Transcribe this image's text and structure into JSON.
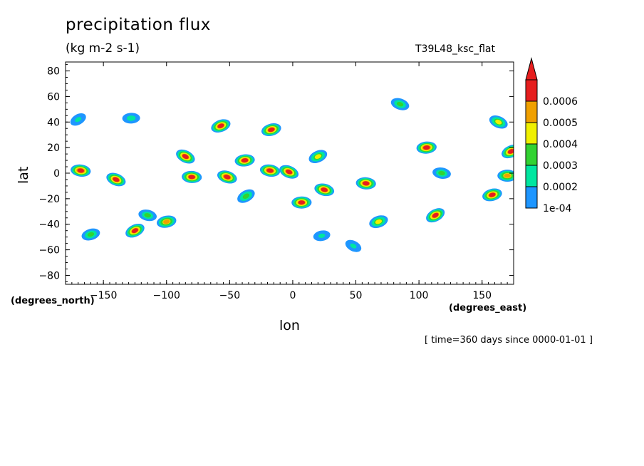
{
  "chart_data": {
    "type": "heatmap",
    "title": "precipitation flux",
    "subtitle": "(kg m-2 s-1)",
    "run_label": "T39L48_ksc_flat",
    "xlabel": "lon",
    "ylabel": "lat",
    "x_unit": "(degrees_east)",
    "y_unit": "(degrees_north)",
    "timestamp": "[ time=360 days since 0000-01-01 ]",
    "xlim": [
      -180,
      175
    ],
    "ylim": [
      -87,
      87
    ],
    "x_ticks": [
      -150,
      -100,
      -50,
      0,
      50,
      100,
      150
    ],
    "y_ticks": [
      80,
      60,
      40,
      20,
      0,
      -20,
      -40,
      -60,
      -80
    ],
    "legend": {
      "placement": "right",
      "levels": [
        "1e-04",
        "0.0002",
        "0.0003",
        "0.0004",
        "0.0005",
        "0.0006"
      ],
      "colors": [
        "#1e96ff",
        "#00e6a0",
        "#32d232",
        "#f0f000",
        "#f0a000",
        "#e61e1e"
      ]
    },
    "features": [
      {
        "lon": -170,
        "lat": 42,
        "peak": 0.00022
      },
      {
        "lon": -168,
        "lat": 2,
        "peak": 0.00065
      },
      {
        "lon": -160,
        "lat": -48,
        "peak": 0.00032
      },
      {
        "lon": -140,
        "lat": -5,
        "peak": 0.00062
      },
      {
        "lon": -128,
        "lat": 43,
        "peak": 0.00025
      },
      {
        "lon": -125,
        "lat": -45,
        "peak": 0.00062
      },
      {
        "lon": -115,
        "lat": -33,
        "peak": 0.0003
      },
      {
        "lon": -100,
        "lat": -38,
        "peak": 0.0005
      },
      {
        "lon": -85,
        "lat": 13,
        "peak": 0.00062
      },
      {
        "lon": -80,
        "lat": -3,
        "peak": 0.00062
      },
      {
        "lon": -57,
        "lat": 37,
        "peak": 0.00062
      },
      {
        "lon": -52,
        "lat": -3,
        "peak": 0.00065
      },
      {
        "lon": -38,
        "lat": 10,
        "peak": 0.00062
      },
      {
        "lon": -37,
        "lat": -18,
        "peak": 0.00035
      },
      {
        "lon": -18,
        "lat": 2,
        "peak": 0.00065
      },
      {
        "lon": -17,
        "lat": 34,
        "peak": 0.00062
      },
      {
        "lon": -3,
        "lat": 1,
        "peak": 0.00062
      },
      {
        "lon": 7,
        "lat": -23,
        "peak": 0.00062
      },
      {
        "lon": 20,
        "lat": 13,
        "peak": 0.0004
      },
      {
        "lon": 25,
        "lat": -13,
        "peak": 0.00062
      },
      {
        "lon": 23,
        "lat": -49,
        "peak": 0.00022
      },
      {
        "lon": 48,
        "lat": -57,
        "peak": 0.00022
      },
      {
        "lon": 58,
        "lat": -8,
        "peak": 0.00062
      },
      {
        "lon": 68,
        "lat": -38,
        "peak": 0.0004
      },
      {
        "lon": 85,
        "lat": 54,
        "peak": 0.00032
      },
      {
        "lon": 106,
        "lat": 20,
        "peak": 0.00065
      },
      {
        "lon": 113,
        "lat": -33,
        "peak": 0.00062
      },
      {
        "lon": 118,
        "lat": 0,
        "peak": 0.0003
      },
      {
        "lon": 158,
        "lat": -17,
        "peak": 0.00062
      },
      {
        "lon": 163,
        "lat": 40,
        "peak": 0.0004
      },
      {
        "lon": 170,
        "lat": -2,
        "peak": 0.0005
      },
      {
        "lon": 173,
        "lat": 17,
        "peak": 0.00062
      }
    ]
  }
}
